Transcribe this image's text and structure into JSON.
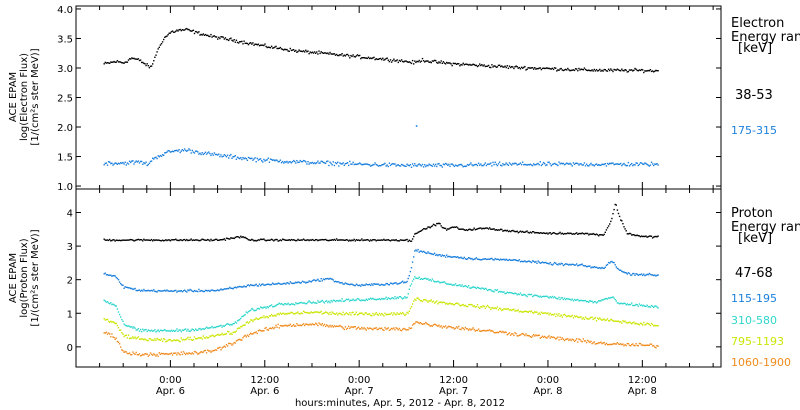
{
  "chart_data": [
    {
      "type": "scatter",
      "ylabel": [
        "ACE EPAM",
        "log(Electron Flux)",
        "[1/(cm²s ster MeV)]"
      ],
      "ylim": [
        0.95,
        4.05
      ],
      "yticks": [
        1.0,
        1.5,
        2.0,
        2.5,
        3.0,
        3.5,
        4.0
      ],
      "ytick_labels": [
        "1.0",
        "1.5",
        "2.0",
        "2.5",
        "3.0",
        "3.5",
        "4.0"
      ],
      "legend_title": [
        "Electron",
        "Energy ran",
        "[keV]"
      ],
      "series": [
        {
          "name": "38-53",
          "color": "#000000",
          "points": [
            [
              -8.5,
              3.08
            ],
            [
              -7,
              3.12
            ],
            [
              -6,
              3.1
            ],
            [
              -5,
              3.18
            ],
            [
              -4,
              3.14
            ],
            [
              -3,
              3.05
            ],
            [
              -2.5,
              3.02
            ],
            [
              -2,
              3.22
            ],
            [
              -1,
              3.5
            ],
            [
              0,
              3.62
            ],
            [
              1,
              3.65
            ],
            [
              2,
              3.66
            ],
            [
              3,
              3.62
            ],
            [
              5,
              3.55
            ],
            [
              8,
              3.48
            ],
            [
              12,
              3.38
            ],
            [
              16,
              3.3
            ],
            [
              20,
              3.25
            ],
            [
              24,
              3.2
            ],
            [
              28,
              3.15
            ],
            [
              30,
              3.12
            ],
            [
              31,
              3.1
            ],
            [
              32,
              3.15
            ],
            [
              33,
              3.12
            ],
            [
              36,
              3.08
            ],
            [
              40,
              3.05
            ],
            [
              44,
              3.02
            ],
            [
              48,
              3.0
            ],
            [
              52,
              2.98
            ],
            [
              56,
              2.97
            ],
            [
              60,
              2.97
            ],
            [
              62,
              2.96
            ]
          ],
          "jitter": 0.04
        },
        {
          "name": "175-315",
          "color": "#1a7fdc",
          "points": [
            [
              -8.5,
              1.4
            ],
            [
              -6,
              1.4
            ],
            [
              -4,
              1.42
            ],
            [
              -3,
              1.38
            ],
            [
              -2,
              1.5
            ],
            [
              0,
              1.6
            ],
            [
              2,
              1.62
            ],
            [
              5,
              1.55
            ],
            [
              8,
              1.5
            ],
            [
              12,
              1.45
            ],
            [
              16,
              1.42
            ],
            [
              20,
              1.4
            ],
            [
              24,
              1.38
            ],
            [
              30,
              1.36
            ],
            [
              36,
              1.36
            ],
            [
              42,
              1.38
            ],
            [
              48,
              1.38
            ],
            [
              54,
              1.38
            ],
            [
              60,
              1.38
            ],
            [
              62,
              1.38
            ]
          ],
          "jitter": 0.05
        }
      ],
      "outliers": [
        {
          "x": 31.2,
          "y": 2.03,
          "color": "#1a7fdc"
        }
      ]
    },
    {
      "type": "scatter",
      "ylabel": [
        "ACE EPAM",
        "log(Proton Flux)",
        "[1/(cm²s ster MeV)]"
      ],
      "ylim": [
        -0.6,
        4.7
      ],
      "yticks": [
        0,
        1,
        2,
        3,
        4
      ],
      "ytick_labels": [
        "0",
        "1",
        "2",
        "3",
        "4"
      ],
      "legend_title": [
        "Proton",
        "Energy ran",
        "[keV]"
      ],
      "series": [
        {
          "name": "47-68",
          "color": "#000000",
          "points": [
            [
              -8.5,
              3.2
            ],
            [
              -4,
              3.2
            ],
            [
              0,
              3.2
            ],
            [
              6,
              3.2
            ],
            [
              9,
              3.3
            ],
            [
              10,
              3.2
            ],
            [
              20,
              3.2
            ],
            [
              30,
              3.2
            ],
            [
              30.5,
              3.15
            ],
            [
              31,
              3.4
            ],
            [
              32,
              3.5
            ],
            [
              33,
              3.6
            ],
            [
              34,
              3.7
            ],
            [
              35,
              3.5
            ],
            [
              36,
              3.6
            ],
            [
              37,
              3.5
            ],
            [
              40,
              3.55
            ],
            [
              44,
              3.45
            ],
            [
              48,
              3.4
            ],
            [
              52,
              3.4
            ],
            [
              55,
              3.35
            ],
            [
              56,
              3.8
            ],
            [
              56.5,
              4.3
            ],
            [
              57,
              3.9
            ],
            [
              58,
              3.4
            ],
            [
              60,
              3.3
            ],
            [
              62,
              3.3
            ]
          ],
          "jitter": 0.04
        },
        {
          "name": "115-195",
          "color": "#1a7fdc",
          "points": [
            [
              -8.5,
              2.2
            ],
            [
              -7,
              2.1
            ],
            [
              -6,
              1.8
            ],
            [
              -4,
              1.7
            ],
            [
              0,
              1.68
            ],
            [
              6,
              1.7
            ],
            [
              10,
              1.85
            ],
            [
              14,
              1.9
            ],
            [
              17,
              1.95
            ],
            [
              20,
              2.05
            ],
            [
              22,
              1.9
            ],
            [
              24,
              1.85
            ],
            [
              28,
              1.9
            ],
            [
              30,
              1.95
            ],
            [
              30.5,
              2.3
            ],
            [
              31,
              2.9
            ],
            [
              32,
              2.85
            ],
            [
              34,
              2.75
            ],
            [
              38,
              2.65
            ],
            [
              44,
              2.6
            ],
            [
              48,
              2.5
            ],
            [
              52,
              2.45
            ],
            [
              55,
              2.35
            ],
            [
              56,
              2.6
            ],
            [
              57,
              2.3
            ],
            [
              58,
              2.2
            ],
            [
              62,
              2.15
            ]
          ],
          "jitter": 0.05
        },
        {
          "name": "310-580",
          "color": "#2ed6cc",
          "points": [
            [
              -8.5,
              1.4
            ],
            [
              -7,
              1.25
            ],
            [
              -6,
              0.7
            ],
            [
              -4,
              0.5
            ],
            [
              0,
              0.5
            ],
            [
              4,
              0.55
            ],
            [
              8,
              0.7
            ],
            [
              10,
              1.1
            ],
            [
              14,
              1.3
            ],
            [
              18,
              1.35
            ],
            [
              22,
              1.4
            ],
            [
              26,
              1.45
            ],
            [
              30,
              1.5
            ],
            [
              30.5,
              1.9
            ],
            [
              31,
              2.1
            ],
            [
              34,
              1.95
            ],
            [
              38,
              1.8
            ],
            [
              44,
              1.6
            ],
            [
              50,
              1.45
            ],
            [
              54,
              1.35
            ],
            [
              56,
              1.5
            ],
            [
              57,
              1.3
            ],
            [
              60,
              1.25
            ],
            [
              62,
              1.2
            ]
          ],
          "jitter": 0.06
        },
        {
          "name": "795-1193",
          "color": "#cbe605",
          "points": [
            [
              -8.5,
              0.85
            ],
            [
              -7,
              0.7
            ],
            [
              -6,
              0.35
            ],
            [
              -4,
              0.25
            ],
            [
              0,
              0.2
            ],
            [
              4,
              0.3
            ],
            [
              8,
              0.45
            ],
            [
              10,
              0.8
            ],
            [
              14,
              1.0
            ],
            [
              18,
              1.05
            ],
            [
              22,
              1.0
            ],
            [
              26,
              1.0
            ],
            [
              30,
              1.0
            ],
            [
              30.5,
              1.2
            ],
            [
              31,
              1.45
            ],
            [
              34,
              1.35
            ],
            [
              38,
              1.25
            ],
            [
              44,
              1.1
            ],
            [
              50,
              0.95
            ],
            [
              56,
              0.8
            ],
            [
              62,
              0.65
            ]
          ],
          "jitter": 0.07
        },
        {
          "name": "1060-1900",
          "color": "#f08c1e",
          "points": [
            [
              -8.5,
              0.45
            ],
            [
              -7,
              0.3
            ],
            [
              -6,
              -0.15
            ],
            [
              -4,
              -0.2
            ],
            [
              0,
              -0.2
            ],
            [
              4,
              -0.15
            ],
            [
              6,
              -0.05
            ],
            [
              8,
              0.15
            ],
            [
              10,
              0.4
            ],
            [
              14,
              0.65
            ],
            [
              18,
              0.7
            ],
            [
              22,
              0.6
            ],
            [
              26,
              0.55
            ],
            [
              30,
              0.55
            ],
            [
              30.5,
              0.6
            ],
            [
              31,
              0.75
            ],
            [
              34,
              0.65
            ],
            [
              38,
              0.55
            ],
            [
              44,
              0.4
            ],
            [
              50,
              0.25
            ],
            [
              56,
              0.1
            ],
            [
              62,
              0.05
            ]
          ],
          "jitter": 0.08
        }
      ]
    }
  ],
  "x_axis": {
    "xlim": [
      -12,
      70
    ],
    "ticks": [
      {
        "x": 0,
        "time": "0:00",
        "date": "Apr. 6"
      },
      {
        "x": 12,
        "time": "12:00",
        "date": "Apr. 6"
      },
      {
        "x": 24,
        "time": "0:00",
        "date": "Apr. 7"
      },
      {
        "x": 36,
        "time": "12:00",
        "date": "Apr. 7"
      },
      {
        "x": 48,
        "time": "0:00",
        "date": "Apr. 8"
      },
      {
        "x": 60,
        "time": "12:00",
        "date": "Apr. 8"
      }
    ],
    "label": "hours:minutes, Apr.  5, 2012 - Apr.  8, 2012"
  }
}
